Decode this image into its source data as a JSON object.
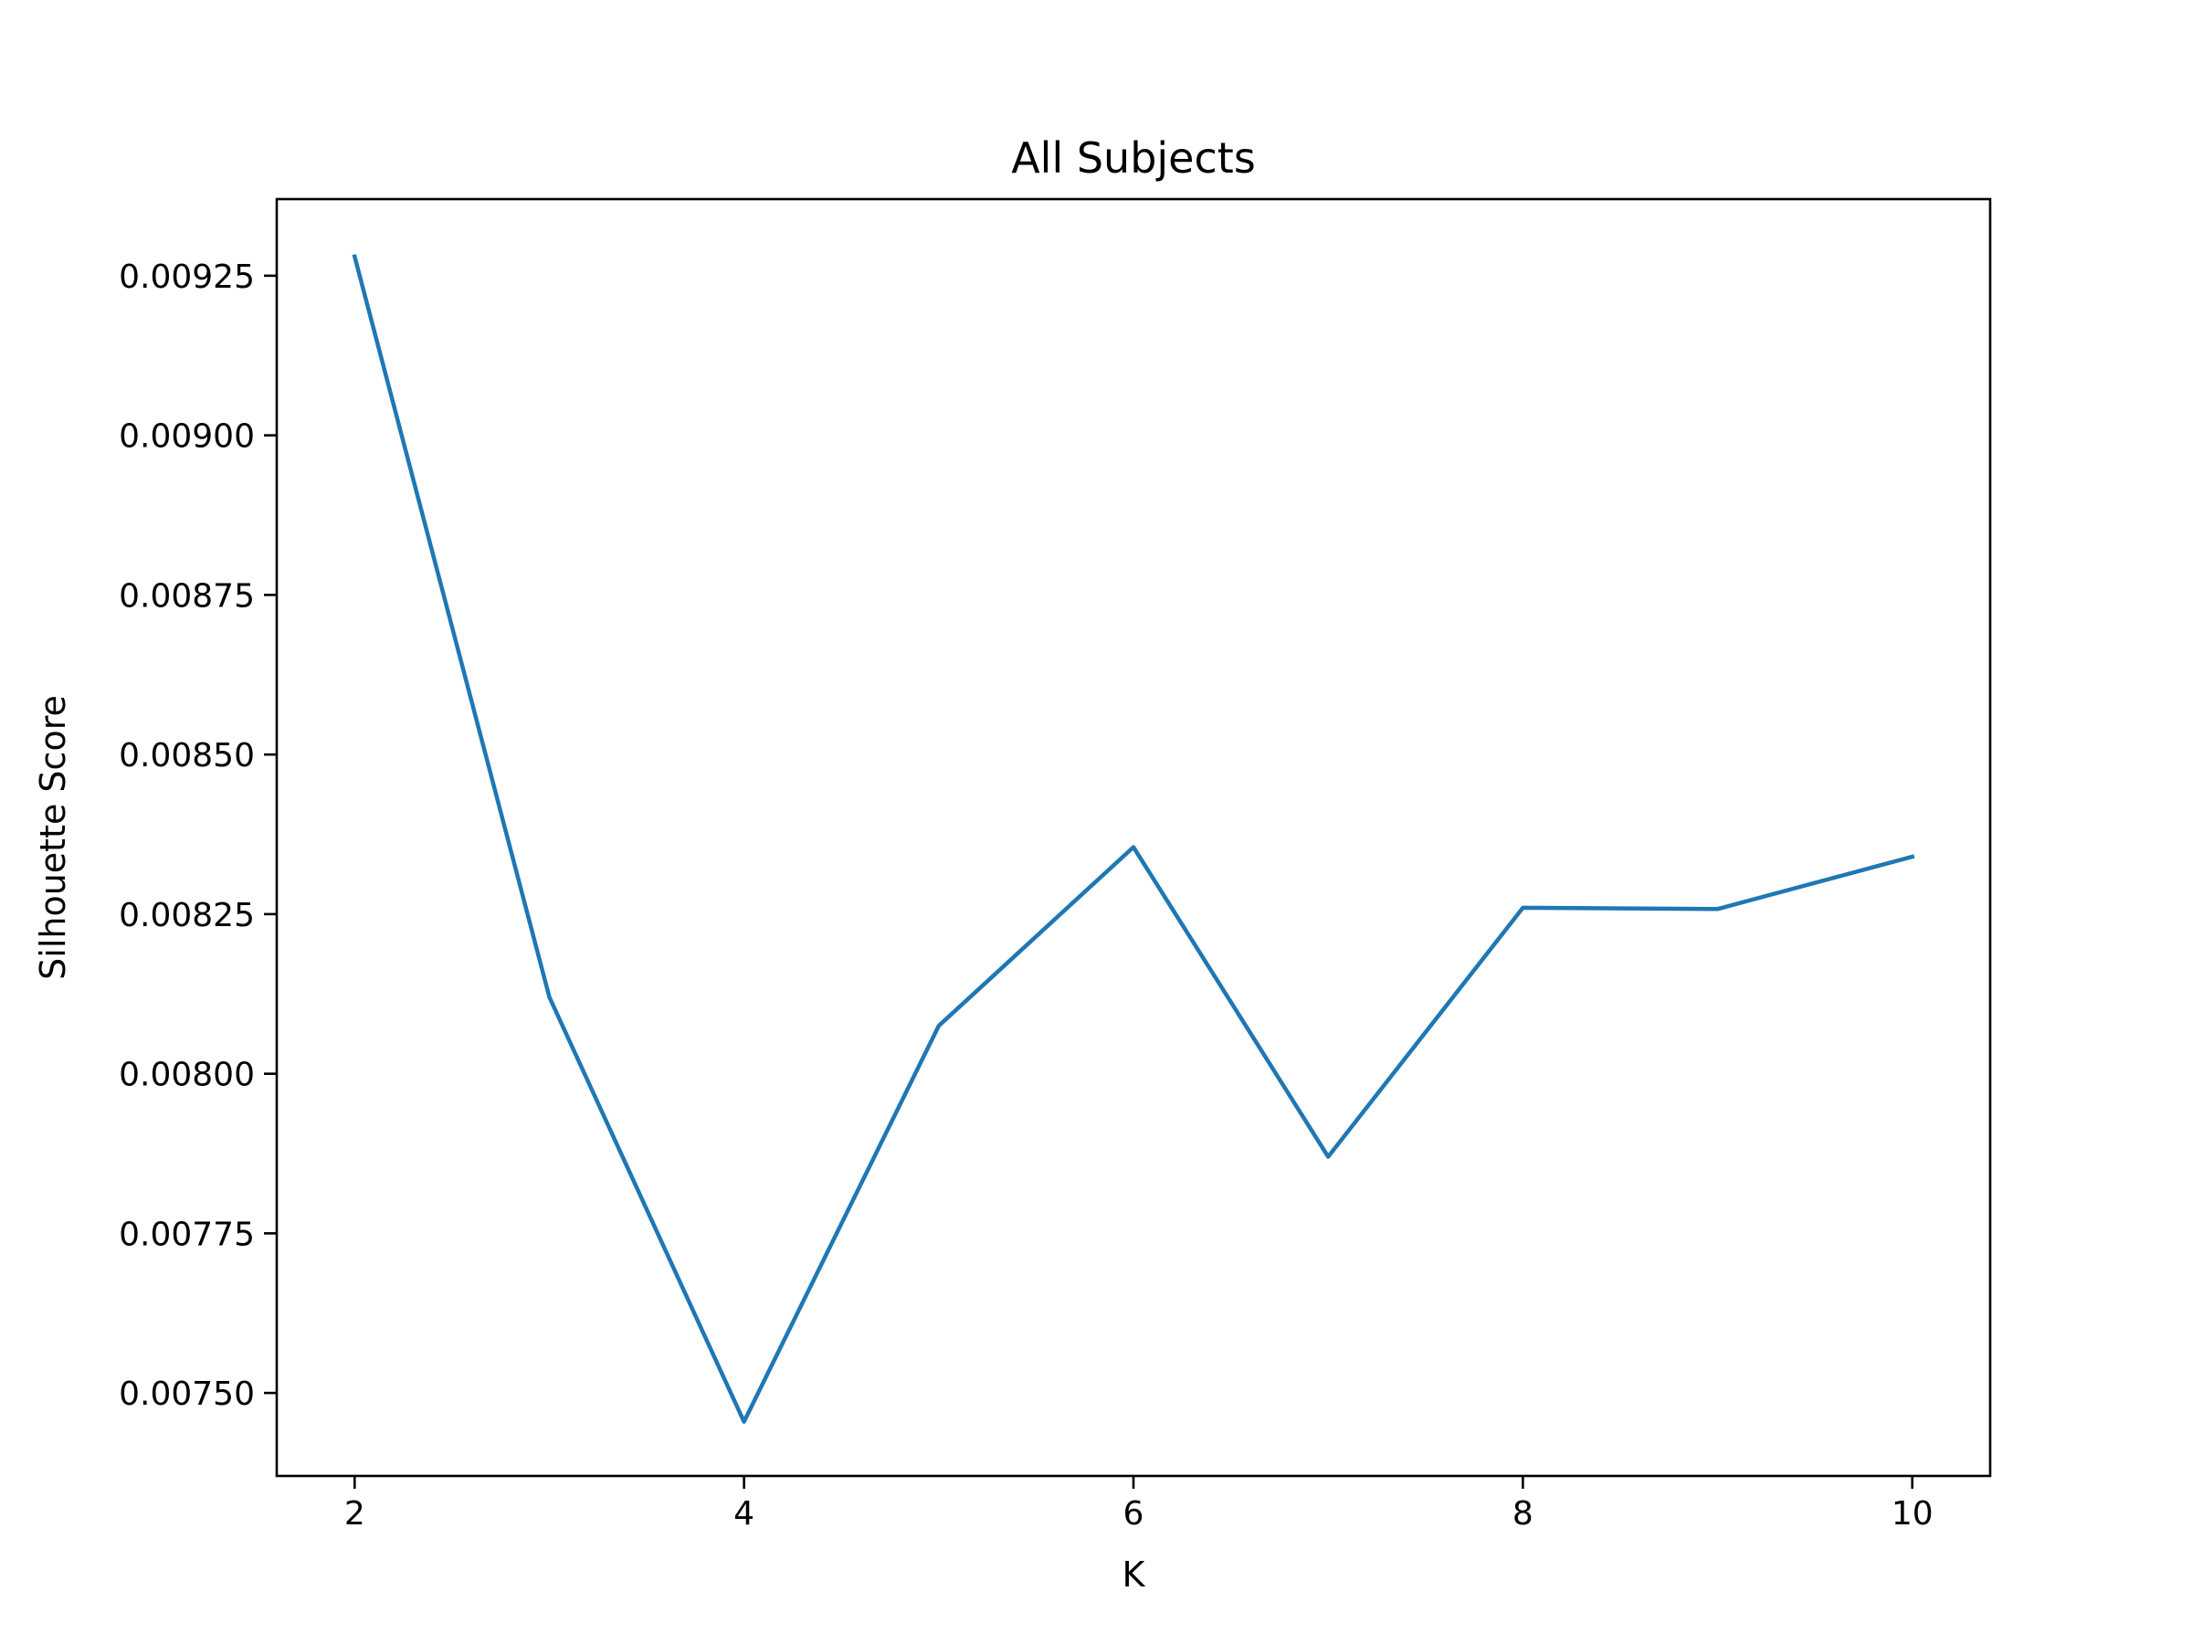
{
  "chart_data": {
    "type": "line",
    "title": "All Subjects",
    "xlabel": "K",
    "ylabel": "Silhouette Score",
    "xlim": [
      1.6,
      10.4
    ],
    "ylim": [
      0.00737,
      0.00937
    ],
    "xticks": [
      2,
      4,
      6,
      8,
      10
    ],
    "xtick_labels": [
      "2",
      "4",
      "6",
      "8",
      "10"
    ],
    "yticks": [
      0.0075,
      0.00775,
      0.008,
      0.00825,
      0.0085,
      0.00875,
      0.009,
      0.00925
    ],
    "ytick_labels": [
      "0.00750",
      "0.00775",
      "0.00800",
      "0.00825",
      "0.00850",
      "0.00875",
      "0.00900",
      "0.00925"
    ],
    "grid": false,
    "series": [
      {
        "color": "#1f77b4",
        "x": [
          2,
          3,
          4,
          5,
          6,
          7,
          8,
          9,
          10
        ],
        "y": [
          0.00928,
          0.00812,
          0.007455,
          0.008075,
          0.008355,
          0.00787,
          0.00826,
          0.008258,
          0.00834
        ]
      }
    ]
  }
}
